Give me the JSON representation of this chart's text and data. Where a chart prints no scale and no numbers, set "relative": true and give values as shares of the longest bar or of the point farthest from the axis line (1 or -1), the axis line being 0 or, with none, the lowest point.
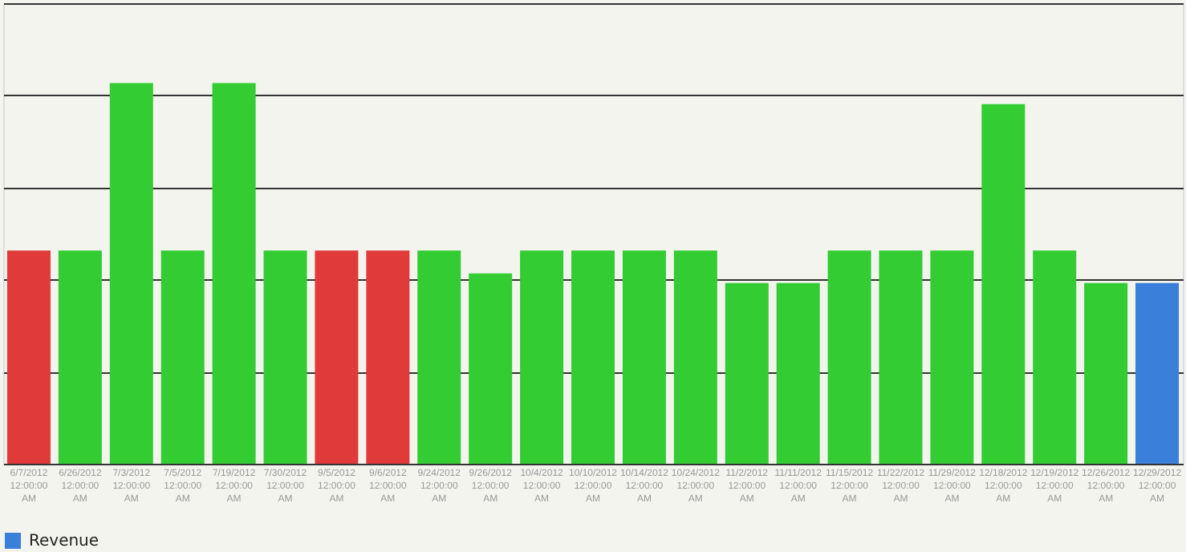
{
  "chart_data": {
    "type": "bar",
    "relative": true,
    "grid": "y",
    "legend": "bottom",
    "categories": [
      "6/7/2012 12:00:00 AM",
      "6/26/2012 12:00:00 AM",
      "7/3/2012 12:00:00 AM",
      "7/5/2012 12:00:00 AM",
      "7/19/2012 12:00:00 AM",
      "7/30/2012 12:00:00 AM",
      "9/5/2012 12:00:00 AM",
      "9/6/2012 12:00:00 AM",
      "9/24/2012 12:00:00 AM",
      "9/26/2012 12:00:00 AM",
      "10/4/2012 12:00:00 AM",
      "10/10/2012 12:00:00 AM",
      "10/14/2012 12:00:00 AM",
      "10/24/2012 12:00:00 AM",
      "11/2/2012 12:00:00 AM",
      "11/11/2012 12:00:00 AM",
      "11/15/2012 12:00:00 AM",
      "11/22/2012 12:00:00 AM",
      "11/29/2012 12:00:00 AM",
      "12/18/2012 12:00:00 AM",
      "12/19/2012 12:00:00 AM",
      "12/26/2012 12:00:00 AM",
      "12/29/2012 12:00:00 AM"
    ],
    "series": [
      {
        "name": "Revenue",
        "color": "#3a7fd9",
        "values": [
          0.56,
          0.56,
          1,
          0.56,
          1,
          0.56,
          0.56,
          0.56,
          0.56,
          0.5,
          0.56,
          0.56,
          0.56,
          0.56,
          0.475,
          0.475,
          0.56,
          0.56,
          0.56,
          0.945,
          0.56,
          0.475,
          0.475
        ],
        "colors": [
          "#e03a3a",
          "#33cc33",
          "#33cc33",
          "#33cc33",
          "#33cc33",
          "#33cc33",
          "#e03a3a",
          "#e03a3a",
          "#33cc33",
          "#33cc33",
          "#33cc33",
          "#33cc33",
          "#33cc33",
          "#33cc33",
          "#33cc33",
          "#33cc33",
          "#33cc33",
          "#33cc33",
          "#33cc33",
          "#33cc33",
          "#33cc33",
          "#33cc33",
          "#3a7fd9"
        ]
      }
    ]
  }
}
